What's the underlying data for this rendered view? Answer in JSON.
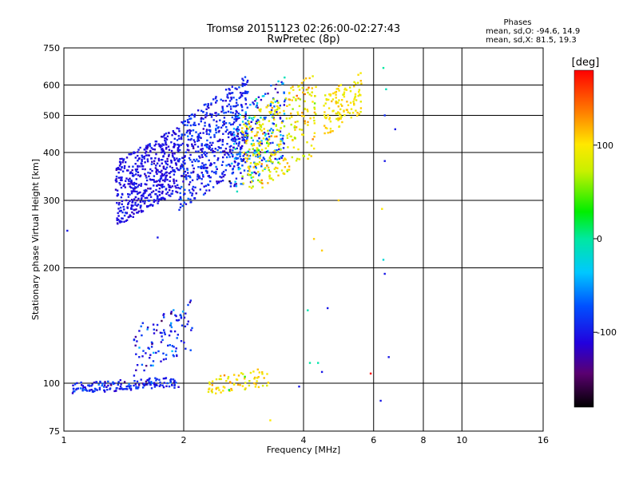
{
  "title": "Tromsø 20151123 02:26:00-02:27:43",
  "subtitle": "RwPretec (8p)",
  "stats": {
    "heading": "Phases",
    "o_line": "mean, sd,O: -94.6, 14.9",
    "x_line": "mean, sd,X: 81.5, 19.3"
  },
  "colorbar": {
    "label": "[deg]",
    "range": [
      -180,
      180
    ],
    "ticks": [
      -100,
      0,
      100
    ],
    "tick_labels": [
      "-100",
      "0",
      "100"
    ]
  },
  "chart_data": {
    "type": "scatter",
    "xlabel": "Frequency [MHz]",
    "ylabel": "Stationary phase Virtual Height [km]",
    "xscale": "log",
    "yscale": "log",
    "xlim": [
      1,
      16
    ],
    "ylim": [
      75,
      750
    ],
    "xticks": [
      1,
      2,
      4,
      6,
      8,
      10,
      16
    ],
    "yticks": [
      75,
      100,
      200,
      300,
      400,
      500,
      600,
      750
    ],
    "grid": true,
    "color_variable": "phase [deg]",
    "clusters": [
      {
        "freq_range": [
          1.05,
          1.95
        ],
        "height_range": [
          94,
          104
        ],
        "phase_mean": -95,
        "phase_sd": 15,
        "count": 160
      },
      {
        "freq_range": [
          1.5,
          2.1
        ],
        "height_range": [
          104,
          165
        ],
        "phase_mean": -95,
        "phase_sd": 25,
        "count": 110
      },
      {
        "freq_range": [
          1.35,
          1.95
        ],
        "height_range": [
          256,
          470
        ],
        "phase_mean": -105,
        "phase_sd": 10,
        "count": 520
      },
      {
        "freq_range": [
          1.95,
          2.9
        ],
        "height_range": [
          280,
          640
        ],
        "phase_mean": -95,
        "phase_sd": 15,
        "count": 520
      },
      {
        "freq_range": [
          2.6,
          3.6
        ],
        "height_range": [
          300,
          640
        ],
        "phase_mean": -70,
        "phase_sd": 40,
        "count": 240
      },
      {
        "freq_range": [
          2.8,
          4.3
        ],
        "height_range": [
          300,
          650
        ],
        "phase_mean": 95,
        "phase_sd": 20,
        "count": 300
      },
      {
        "freq_range": [
          4.5,
          5.6
        ],
        "height_range": [
          440,
          650
        ],
        "phase_mean": 100,
        "phase_sd": 10,
        "count": 120
      },
      {
        "freq_range": [
          2.3,
          3.3
        ],
        "height_range": [
          93,
          110
        ],
        "phase_mean": 100,
        "phase_sd": 15,
        "count": 70
      }
    ],
    "isolated_points": [
      {
        "x": 1.02,
        "y": 250,
        "phase": -100
      },
      {
        "x": 1.72,
        "y": 240,
        "phase": -100
      },
      {
        "x": 4.25,
        "y": 238,
        "phase": 110
      },
      {
        "x": 4.45,
        "y": 222,
        "phase": 110
      },
      {
        "x": 4.9,
        "y": 300,
        "phase": 110
      },
      {
        "x": 6.4,
        "y": 193,
        "phase": -100
      },
      {
        "x": 6.35,
        "y": 210,
        "phase": -20
      },
      {
        "x": 6.3,
        "y": 285,
        "phase": 100
      },
      {
        "x": 6.4,
        "y": 380,
        "phase": -100
      },
      {
        "x": 6.4,
        "y": 500,
        "phase": -90
      },
      {
        "x": 6.8,
        "y": 460,
        "phase": -100
      },
      {
        "x": 6.35,
        "y": 665,
        "phase": 0
      },
      {
        "x": 6.45,
        "y": 585,
        "phase": -10
      },
      {
        "x": 4.1,
        "y": 155,
        "phase": -5
      },
      {
        "x": 4.6,
        "y": 157,
        "phase": -100
      },
      {
        "x": 4.15,
        "y": 113,
        "phase": 0
      },
      {
        "x": 4.45,
        "y": 107,
        "phase": -100
      },
      {
        "x": 4.35,
        "y": 113,
        "phase": -5
      },
      {
        "x": 5.9,
        "y": 106,
        "phase": 180
      },
      {
        "x": 6.55,
        "y": 117,
        "phase": -100
      },
      {
        "x": 6.25,
        "y": 90,
        "phase": -100
      },
      {
        "x": 3.3,
        "y": 80,
        "phase": 100
      },
      {
        "x": 3.9,
        "y": 98,
        "phase": -100
      },
      {
        "x": 2.6,
        "y": 96,
        "phase": 20
      },
      {
        "x": 2.85,
        "y": 104,
        "phase": 40
      }
    ]
  }
}
